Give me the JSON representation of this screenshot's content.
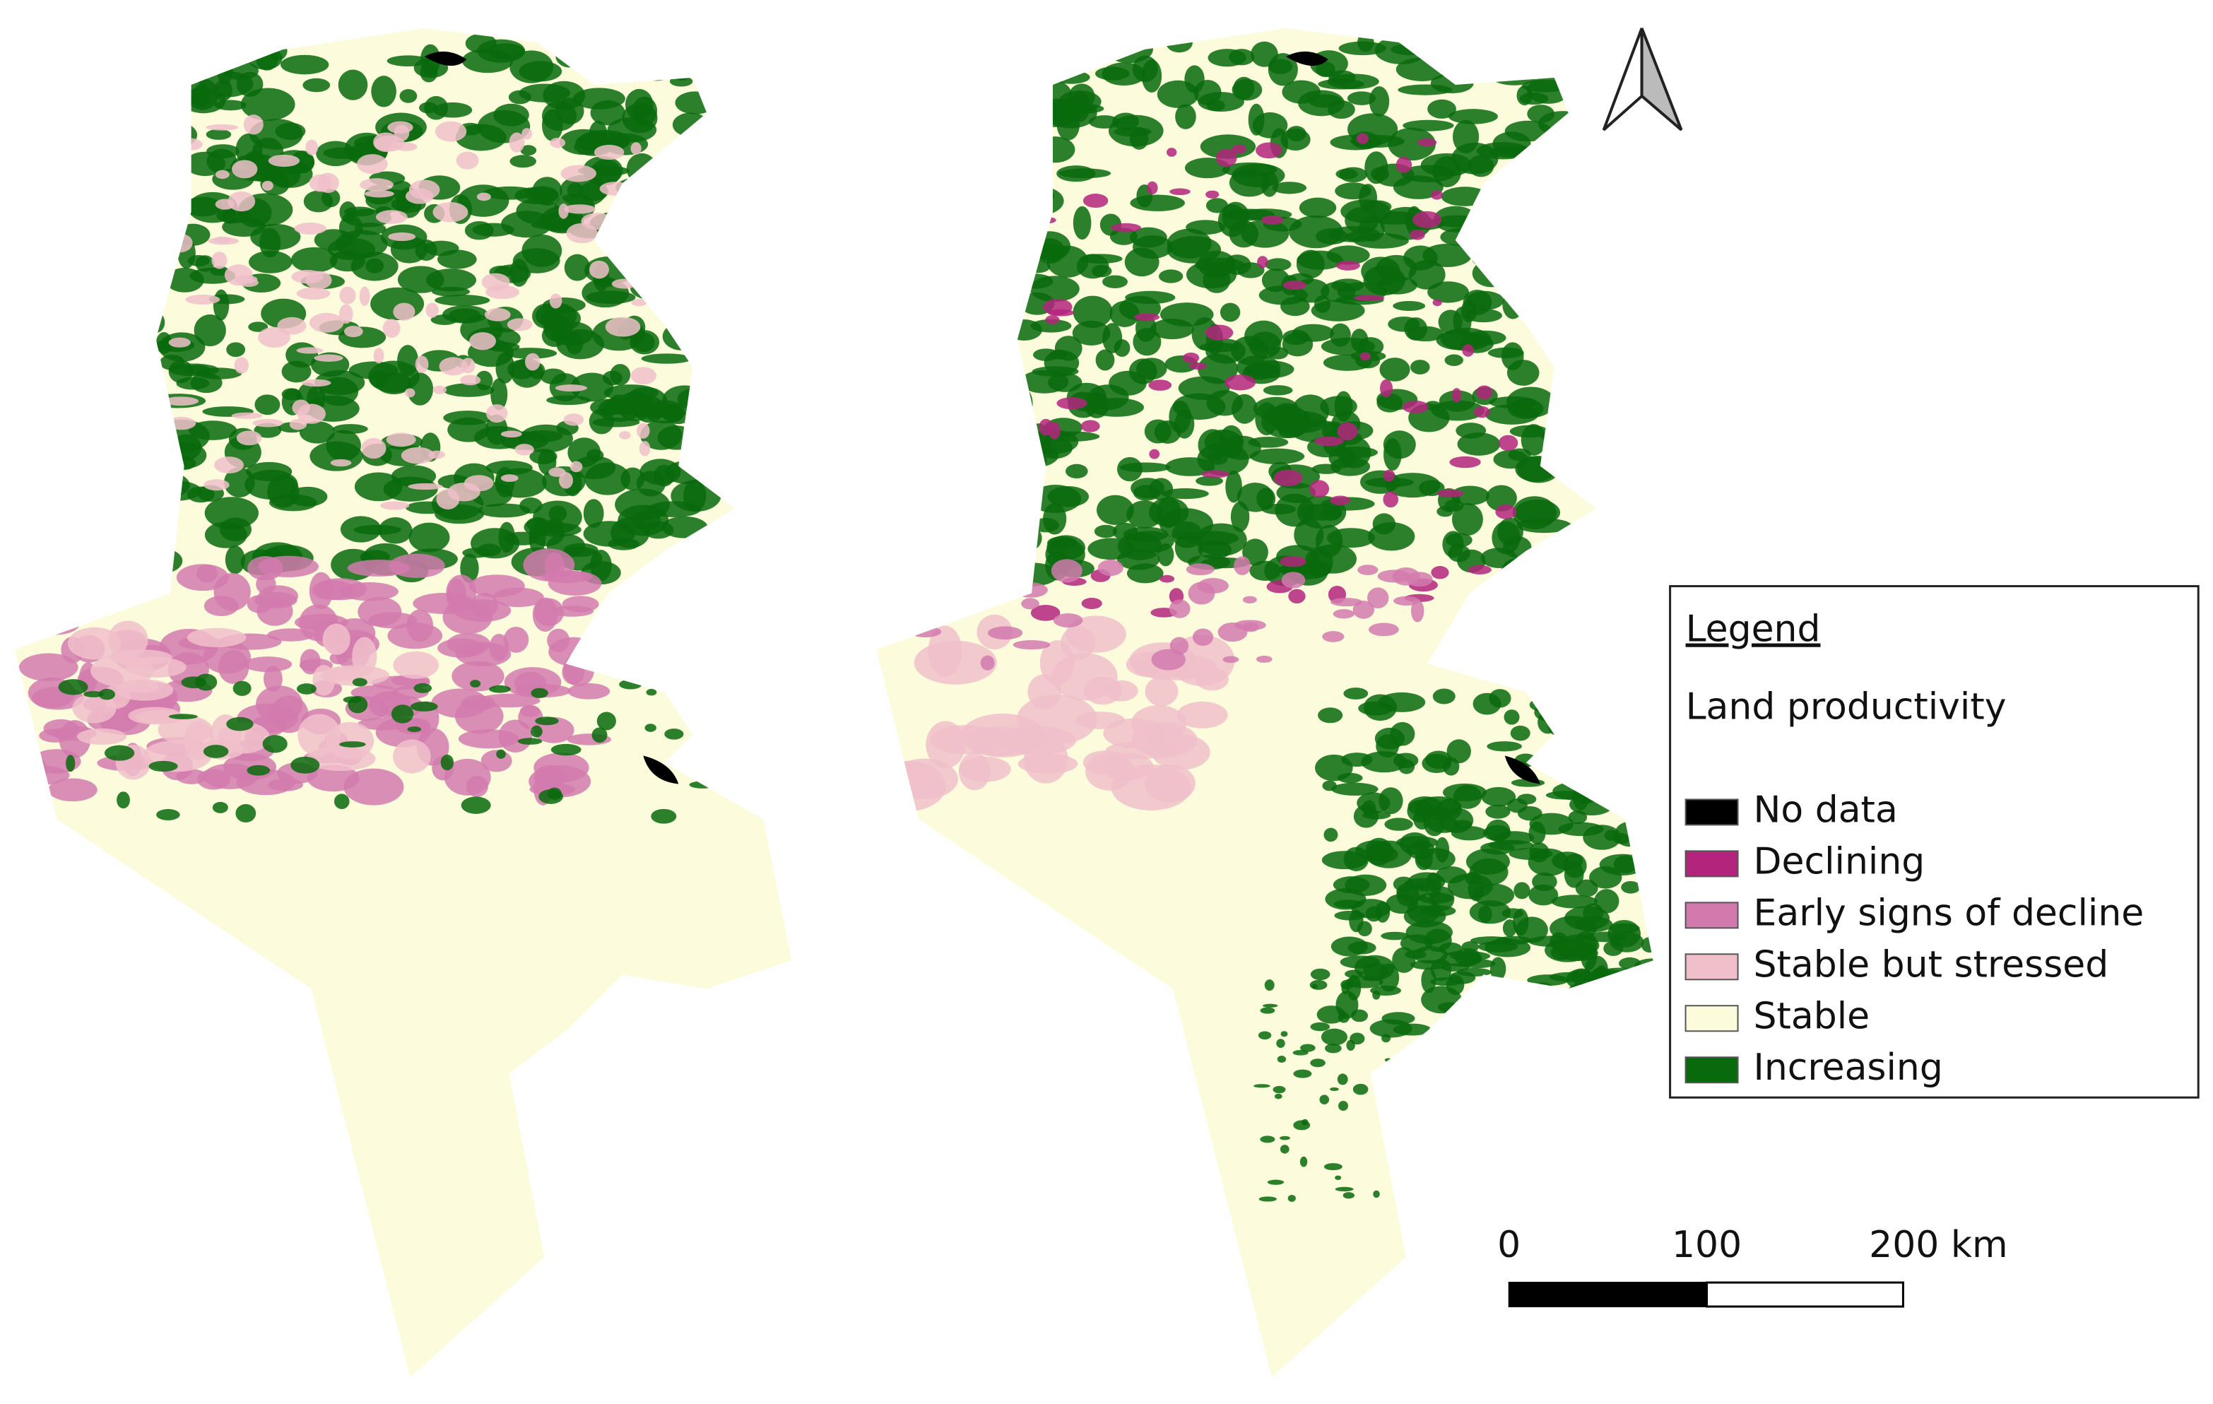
{
  "legend": {
    "title": "Legend",
    "subtitle": "Land productivity",
    "items": [
      {
        "label": "No data",
        "color": "#000000"
      },
      {
        "label": "Declining",
        "color": "#b3247c"
      },
      {
        "label": "Early signs of decline",
        "color": "#d27aae"
      },
      {
        "label": "Stable but stressed",
        "color": "#f0bfca"
      },
      {
        "label": "Stable",
        "color": "#fcfcdc"
      },
      {
        "label": "Increasing",
        "color": "#086a0c"
      }
    ]
  },
  "scale_bar": {
    "labels": [
      "0",
      "100",
      "200 km"
    ]
  }
}
